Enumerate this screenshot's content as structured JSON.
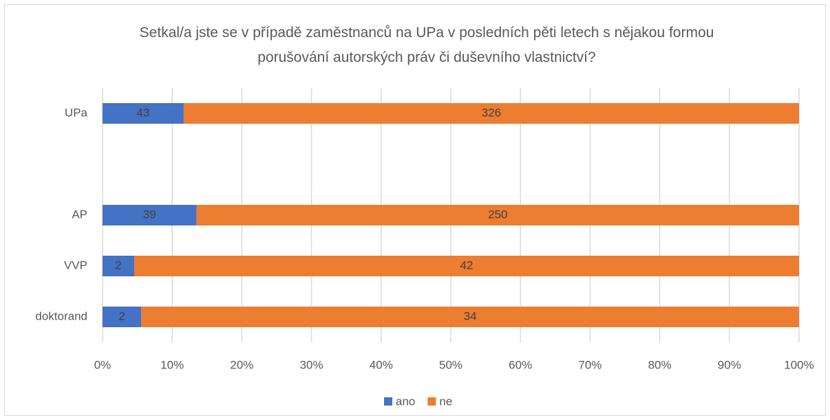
{
  "chart_data": {
    "type": "bar",
    "orientation": "horizontal",
    "stacking": "percent",
    "title": "Setkal/a jste se v případě zaměstnanců na UPa v posledních pěti letech s nějakou formou porušování autorských práv či duševního vlastnictví?",
    "categories": [
      "UPa",
      null,
      "AP",
      "VVP",
      "doktorand"
    ],
    "series": [
      {
        "name": "ano",
        "color": "#4472c4",
        "values": [
          43,
          null,
          39,
          2,
          2
        ]
      },
      {
        "name": "ne",
        "color": "#ed7d31",
        "values": [
          326,
          null,
          250,
          42,
          34
        ]
      }
    ],
    "xlim": [
      0,
      100
    ],
    "xticks": [
      {
        "value": 0,
        "label": "0%"
      },
      {
        "value": 10,
        "label": "10%"
      },
      {
        "value": 20,
        "label": "20%"
      },
      {
        "value": 30,
        "label": "30%"
      },
      {
        "value": 40,
        "label": "40%"
      },
      {
        "value": 50,
        "label": "50%"
      },
      {
        "value": 60,
        "label": "60%"
      },
      {
        "value": 70,
        "label": "70%"
      },
      {
        "value": 80,
        "label": "80%"
      },
      {
        "value": 90,
        "label": "90%"
      },
      {
        "value": 100,
        "label": "100%"
      }
    ],
    "grid": true,
    "legend": "bottom"
  }
}
